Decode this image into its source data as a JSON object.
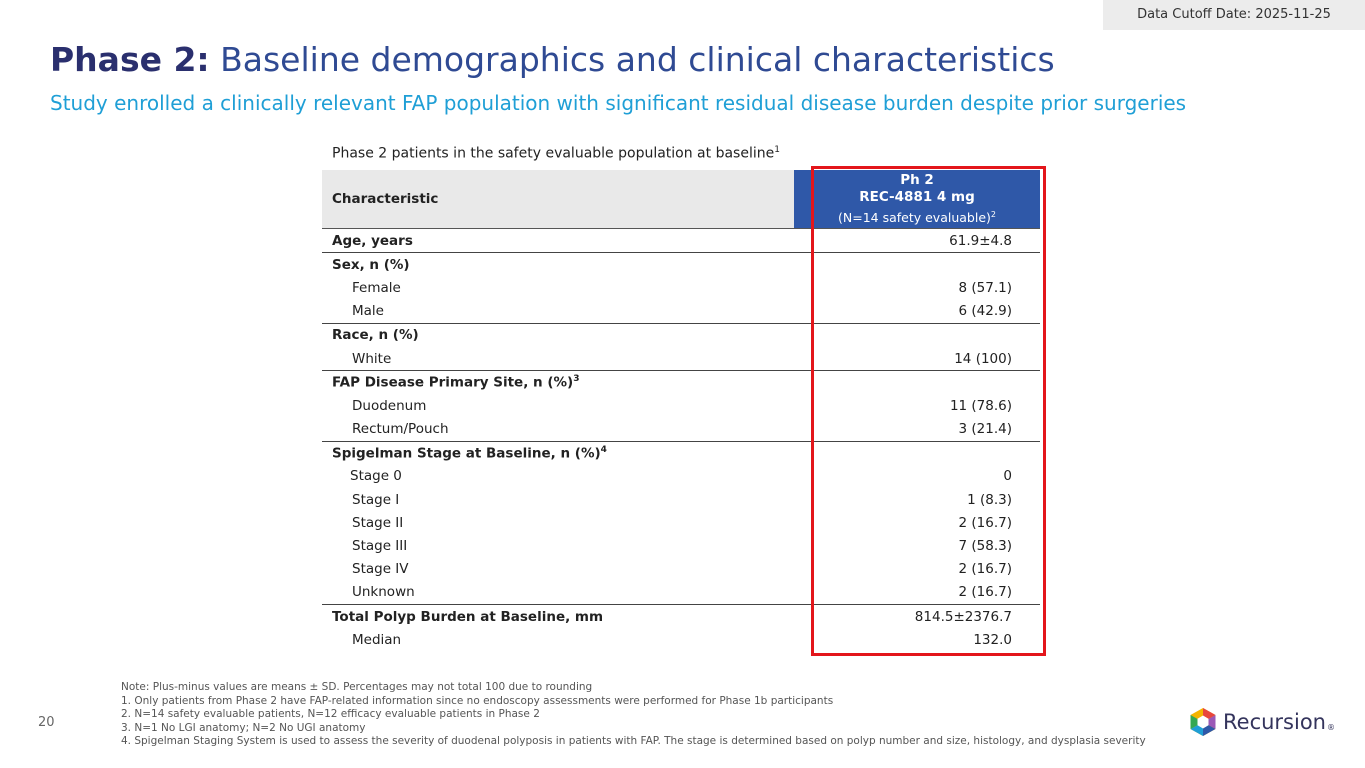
{
  "cutoff": "Data Cutoff Date: 2025-11-25",
  "title": {
    "bold": "Phase 2:",
    "rest": "Baseline demographics and clinical characteristics"
  },
  "subtitle": "Study enrolled a clinically relevant FAP population with significant residual disease burden despite prior surgeries",
  "caption": {
    "text": "Phase 2 patients in the safety evaluable population at baseline",
    "sup": "1"
  },
  "table": {
    "header": {
      "characteristic": "Characteristic",
      "col_line1": "Ph 2",
      "col_line2": "REC-4881 4 mg",
      "col_line3": "(N=14 safety evaluable)",
      "col_sup": "2"
    },
    "age": {
      "label": "Age, years",
      "value": "61.9±4.8"
    },
    "sex": {
      "label": "Sex, n (%)",
      "female_label": "Female",
      "female_value": "8 (57.1)",
      "male_label": "Male",
      "male_value": "6 (42.9)"
    },
    "race": {
      "label": "Race, n (%)",
      "white_label": "White",
      "white_value": "14 (100)"
    },
    "site": {
      "label": "FAP Disease Primary Site, n (%)",
      "sup": "3",
      "duodenum_label": "Duodenum",
      "duodenum_value": "11 (78.6)",
      "rectum_label": "Rectum/Pouch",
      "rectum_value": "3 (21.4)"
    },
    "spigelman": {
      "label": "Spigelman Stage at Baseline, n (%)",
      "sup": "4",
      "stage0_label": "Stage 0",
      "stage0_value": "0",
      "stage1_label": "Stage I",
      "stage1_value": "1 (8.3)",
      "stage2_label": "Stage II",
      "stage2_value": "2 (16.7)",
      "stage3_label": "Stage III",
      "stage3_value": "7 (58.3)",
      "stage4_label": "Stage IV",
      "stage4_value": "2 (16.7)",
      "unknown_label": "Unknown",
      "unknown_value": "2 (16.7)"
    },
    "polyp": {
      "label": "Total Polyp Burden at Baseline, mm",
      "value": "814.5±2376.7",
      "median_label": "Median",
      "median_value": "132.0"
    }
  },
  "page_number": "20",
  "notes": {
    "line0": "Note: Plus-minus values are means ± SD. Percentages may not total 100 due to rounding",
    "line1": "1. Only patients from Phase 2 have FAP-related information since no endoscopy assessments were performed for Phase 1b participants",
    "line2": "2. N=14 safety evaluable patients, N=12 efficacy evaluable patients in Phase 2",
    "line3": "3. N=1 No LGI anatomy; N=2 No UGI anatomy",
    "line4": "4. Spigelman Staging System is used to assess the severity of duodenal polyposis in patients with FAP. The stage is determined based on polyp number and size, histology, and dysplasia severity"
  },
  "logo": {
    "text": "Recursion",
    "reg": "®",
    "icon": "recursion-hexagon-logo"
  },
  "colors": {
    "title_bold": "#2a2f6e",
    "title_rest": "#2f4a93",
    "subtitle": "#1f9fd6",
    "header_col": "#2f58a8",
    "highlight_box": "#e3161b"
  }
}
